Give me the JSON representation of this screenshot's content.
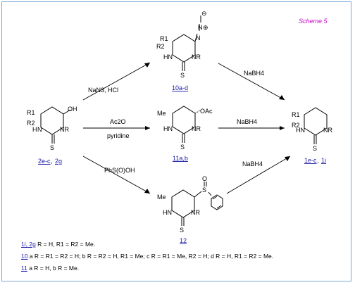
{
  "scheme_label": "Scheme 5",
  "compounds": {
    "start": {
      "label_part1": "2e-c",
      "label_sep": ", ",
      "label_part2": "2g",
      "r1": "R1",
      "r2": "R2",
      "oh": "OH",
      "nh": "N",
      "nr": "NR",
      "h": "H",
      "s": "S"
    },
    "azide": {
      "label": "10a-d",
      "r1": "R1",
      "r2": "R2",
      "n": "N",
      "nh": "HN",
      "nr": "NR",
      "s": "S",
      "minus": "⊖",
      "plus": "⊕"
    },
    "acetate": {
      "label": "11a,b",
      "me": "Me",
      "oac": "OAc",
      "nh": "HN",
      "nr": "NR",
      "s": "S"
    },
    "sulfone": {
      "label": "12",
      "me": "Me",
      "s": "S",
      "o": "O",
      "nh": "HN",
      "nr": "NR",
      "ts": "S"
    },
    "product": {
      "label_part1": "1e-c",
      "label_sep": ", ",
      "label_part2": "1i",
      "r1": "R1",
      "r2": "R2",
      "nh": "HN",
      "nr": "NR",
      "s": "S"
    }
  },
  "reagents": {
    "to_azide": "NaN3, HCl",
    "to_acetate_top": "Ac2O",
    "to_acetate_bottom": "pyridine",
    "to_sulfone": "PhS(O)OH",
    "azide_reduce": "NaBH4",
    "acetate_reduce": "NaBH4",
    "sulfone_reduce": "NaBH4"
  },
  "legend": [
    {
      "refs": "1i, 2g",
      "text": "R = H, R1 = R2 = Me."
    },
    {
      "refs": "10",
      "text": "a R = R1 = R2 = H; b R = R2 = H, R1 = Me; c R = R1 = Me, R2 = H; d R = H, R1 = R2 = Me."
    },
    {
      "refs": "11",
      "text": "a R = H, b R = Me."
    }
  ]
}
